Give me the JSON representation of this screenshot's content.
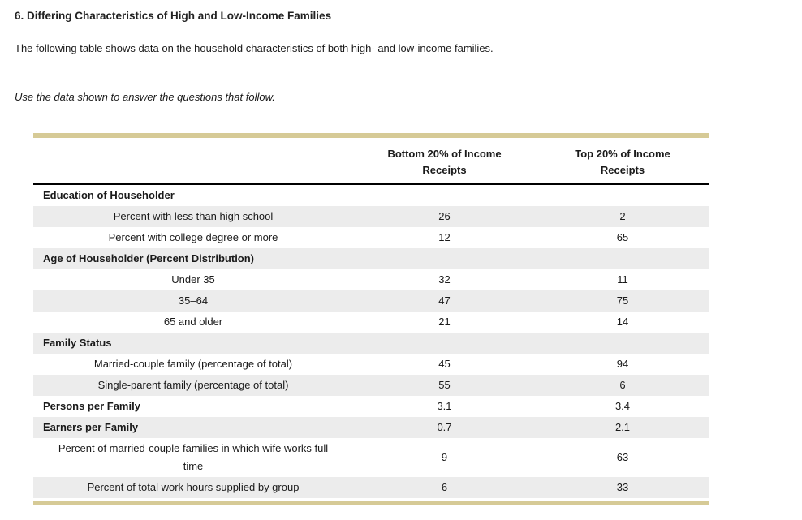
{
  "page": {
    "title": "6. Differing Characteristics of High and Low-Income Families",
    "intro": "The following table shows data on the household characteristics of both high- and low-income families.",
    "instruction": "Use the data shown to answer the questions that follow."
  },
  "colors": {
    "accent_bar": "#d6ca96",
    "row_stripe": "#ececec",
    "header_rule": "#000000",
    "text": "#1a1a1a"
  },
  "table": {
    "headers": [
      {
        "line1": "Bottom 20% of Income",
        "line2": "Receipts"
      },
      {
        "line1": "Top 20% of Income",
        "line2": "Receipts"
      }
    ],
    "rows": [
      {
        "label": "Education of Householder",
        "type": "section",
        "bottom20": "",
        "top20": ""
      },
      {
        "label": "Percent with less than high school",
        "type": "item",
        "bottom20": "26",
        "top20": "2"
      },
      {
        "label": "Percent with college degree or more",
        "type": "item",
        "bottom20": "12",
        "top20": "65"
      },
      {
        "label": "Age of Householder (Percent Distribution)",
        "type": "section",
        "bottom20": "",
        "top20": ""
      },
      {
        "label": "Under 35",
        "type": "item",
        "bottom20": "32",
        "top20": "11"
      },
      {
        "label": "35–64",
        "type": "item",
        "bottom20": "47",
        "top20": "75"
      },
      {
        "label": "65 and older",
        "type": "item",
        "bottom20": "21",
        "top20": "14"
      },
      {
        "label": "Family Status",
        "type": "section",
        "bottom20": "",
        "top20": ""
      },
      {
        "label": "Married-couple family (percentage of total)",
        "type": "item",
        "bottom20": "45",
        "top20": "94"
      },
      {
        "label": "Single-parent family (percentage of total)",
        "type": "item",
        "bottom20": "55",
        "top20": "6"
      },
      {
        "label": "Persons per Family",
        "type": "metric",
        "bottom20": "3.1",
        "top20": "3.4"
      },
      {
        "label": "Earners per Family",
        "type": "metric",
        "bottom20": "0.7",
        "top20": "2.1"
      },
      {
        "label": "Percent of married-couple families in which wife works full time",
        "type": "item",
        "bottom20": "9",
        "top20": "63"
      },
      {
        "label": "Percent of total work hours supplied by group",
        "type": "item",
        "bottom20": "6",
        "top20": "33"
      }
    ]
  }
}
